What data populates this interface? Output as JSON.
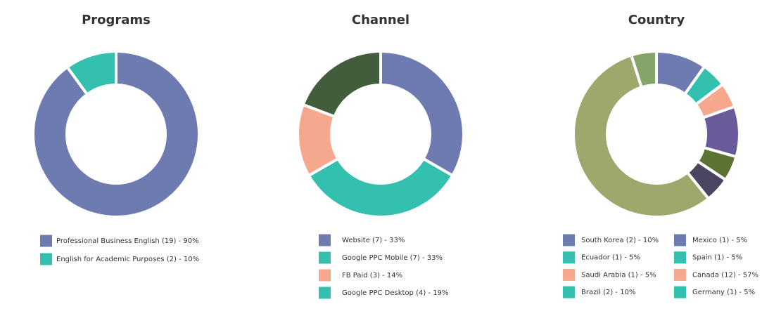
{
  "chart_data": [
    {
      "type": "pie",
      "title": "Programs",
      "categories": [
        "Professional Business English (19) - 90%",
        "English for Academic Purposes (2) - 10%"
      ],
      "values": [
        90,
        10
      ],
      "colors": [
        "#6e7bb1",
        "#34c0ae"
      ],
      "legend_colors": [
        "#6e7bb1",
        "#34c0ae"
      ]
    },
    {
      "type": "pie",
      "title": "Channel",
      "categories": [
        "Website (7) - 33%",
        "Google PPC Mobile (7) - 33%",
        "FB Paid (3) - 14%",
        "Google PPC Desktop (4) - 19%"
      ],
      "values": [
        33,
        33,
        14,
        19
      ],
      "colors": [
        "#6e7bb1",
        "#34c0ae",
        "#f6a88e",
        "#435c3c"
      ],
      "legend_colors": [
        "#6e7bb1",
        "#34c0ae",
        "#f6a88e",
        "#34c0ae"
      ]
    },
    {
      "type": "pie",
      "title": "Country",
      "categories": [
        "South Korea (2) - 10%",
        "Ecuador (1) - 5%",
        "Saudi Arabia (1) - 5%",
        "Brazil (2) - 10%",
        "Mexico (1) - 5%",
        "Spain (1) - 5%",
        "Canada (12) - 57%",
        "Germany (1) - 5%"
      ],
      "values": [
        10,
        5,
        5,
        10,
        5,
        5,
        57,
        5
      ],
      "colors": [
        "#6e7bb1",
        "#34c0ae",
        "#f6a88e",
        "#6a5a9a",
        "#5c7334",
        "#4a4560",
        "#9ea86c",
        "#84a46a"
      ],
      "legend_colors": [
        "#6e7bb1",
        "#34c0ae",
        "#f6a88e",
        "#34c0ae",
        "#6e7bb1",
        "#34c0ae",
        "#f6a88e",
        "#34c0ae"
      ]
    }
  ]
}
